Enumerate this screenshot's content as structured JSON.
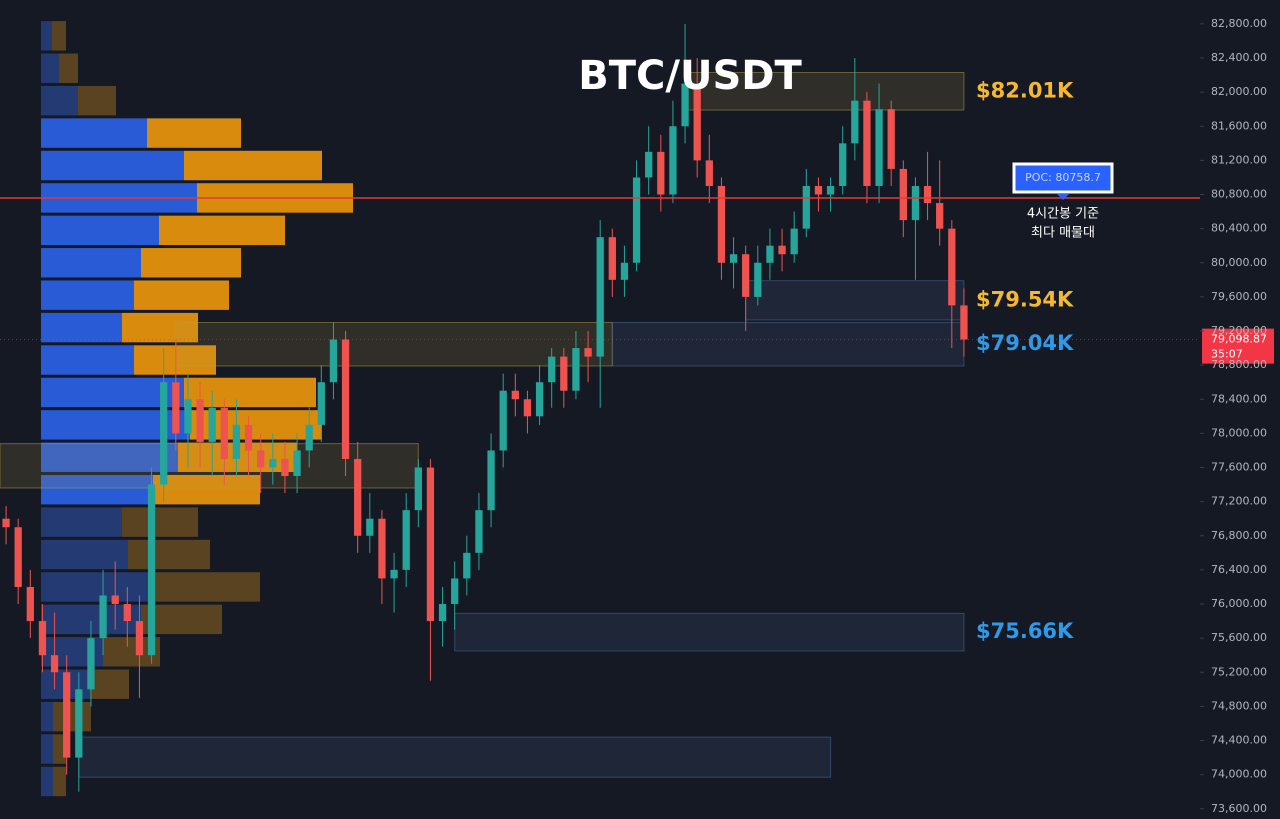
{
  "chart_data": {
    "type": "candlestick",
    "title": "BTC/USDT",
    "ylim": [
      73480,
      83080
    ],
    "yticks": [
      {
        "value": 73600,
        "label": "73,600.00"
      },
      {
        "value": 74000,
        "label": "74,000.00"
      },
      {
        "value": 74400,
        "label": "74,400.00"
      },
      {
        "value": 74800,
        "label": "74,800.00"
      },
      {
        "value": 75200,
        "label": "75,200.00"
      },
      {
        "value": 75600,
        "label": "75,600.00"
      },
      {
        "value": 76000,
        "label": "76,000.00"
      },
      {
        "value": 76400,
        "label": "76,400.00"
      },
      {
        "value": 76800,
        "label": "76,800.00"
      },
      {
        "value": 77200,
        "label": "77,200.00"
      },
      {
        "value": 77600,
        "label": "77,600.00"
      },
      {
        "value": 78000,
        "label": "78,000.00"
      },
      {
        "value": 78400,
        "label": "78,400.00"
      },
      {
        "value": 78800,
        "label": "78,800.00"
      },
      {
        "value": 79200,
        "label": "79,200.00"
      },
      {
        "value": 79600,
        "label": "79,600.00"
      },
      {
        "value": 80000,
        "label": "80,000.00"
      },
      {
        "value": 80400,
        "label": "80,400.00"
      },
      {
        "value": 80800,
        "label": "80,800.00"
      },
      {
        "value": 81200,
        "label": "81,200.00"
      },
      {
        "value": 81600,
        "label": "81,600.00"
      },
      {
        "value": 82000,
        "label": "82,000.00"
      },
      {
        "value": 82400,
        "label": "82,400.00"
      },
      {
        "value": 82800,
        "label": "82,800.00"
      }
    ],
    "grid": false,
    "colors": {
      "up": "#26a69a",
      "down": "#ef5350",
      "buy": "#2a5bd7",
      "sell": "#d98b0e",
      "buy_dim": "#233a72",
      "sell_dim": "#5a4321",
      "poc": "#e53935",
      "last": "#f23645"
    },
    "ohlc": [
      [
        77000,
        77150,
        76700,
        76900
      ],
      [
        76900,
        77000,
        76000,
        76200
      ],
      [
        76200,
        76400,
        75600,
        75800
      ],
      [
        75800,
        76000,
        75200,
        75400
      ],
      [
        75400,
        75900,
        75000,
        75200
      ],
      [
        75200,
        75400,
        74000,
        74200
      ],
      [
        74200,
        75200,
        73800,
        75000
      ],
      [
        75000,
        75800,
        74800,
        75600
      ],
      [
        75600,
        76400,
        75400,
        76100
      ],
      [
        76100,
        76500,
        75700,
        76000
      ],
      [
        76000,
        76200,
        75500,
        75800
      ],
      [
        75800,
        76100,
        74900,
        75400
      ],
      [
        75400,
        77600,
        75300,
        77400
      ],
      [
        77400,
        79000,
        77200,
        78600
      ],
      [
        78600,
        79100,
        77800,
        78000
      ],
      [
        78000,
        78700,
        77600,
        78400
      ],
      [
        78400,
        78600,
        77600,
        77900
      ],
      [
        77900,
        78500,
        77500,
        78300
      ],
      [
        78300,
        78400,
        77400,
        77700
      ],
      [
        77700,
        78400,
        77500,
        78100
      ],
      [
        78100,
        78200,
        77500,
        77800
      ],
      [
        77800,
        78000,
        77300,
        77600
      ],
      [
        77600,
        78000,
        77400,
        77700
      ],
      [
        77700,
        77900,
        77300,
        77500
      ],
      [
        77500,
        78000,
        77300,
        77800
      ],
      [
        77800,
        78300,
        77600,
        78100
      ],
      [
        78100,
        78800,
        77900,
        78600
      ],
      [
        78600,
        79300,
        78400,
        79100
      ],
      [
        79100,
        79200,
        77500,
        77700
      ],
      [
        77700,
        77900,
        76600,
        76800
      ],
      [
        76800,
        77300,
        76600,
        77000
      ],
      [
        77000,
        77100,
        76000,
        76300
      ],
      [
        76300,
        76600,
        75900,
        76400
      ],
      [
        76400,
        77300,
        76200,
        77100
      ],
      [
        77100,
        77700,
        76900,
        77600
      ],
      [
        77600,
        77700,
        75100,
        75800
      ],
      [
        75800,
        76200,
        75500,
        76000
      ],
      [
        76000,
        76500,
        75700,
        76300
      ],
      [
        76300,
        76800,
        76100,
        76600
      ],
      [
        76600,
        77300,
        76400,
        77100
      ],
      [
        77100,
        78000,
        76900,
        77800
      ],
      [
        77800,
        78700,
        77600,
        78500
      ],
      [
        78500,
        78700,
        78200,
        78400
      ],
      [
        78400,
        78500,
        78000,
        78200
      ],
      [
        78200,
        78800,
        78100,
        78600
      ],
      [
        78600,
        79000,
        78300,
        78900
      ],
      [
        78900,
        79000,
        78300,
        78500
      ],
      [
        78500,
        79200,
        78400,
        79000
      ],
      [
        79000,
        79200,
        78600,
        78900
      ],
      [
        78900,
        80500,
        78300,
        80300
      ],
      [
        80300,
        80400,
        79600,
        79800
      ],
      [
        79800,
        80200,
        79600,
        80000
      ],
      [
        80000,
        81200,
        79900,
        81000
      ],
      [
        81000,
        81600,
        80800,
        81300
      ],
      [
        81300,
        81500,
        80600,
        80800
      ],
      [
        80800,
        81900,
        80700,
        81600
      ],
      [
        81600,
        82800,
        81400,
        82100
      ],
      [
        82100,
        82400,
        81000,
        81200
      ],
      [
        81200,
        81500,
        80700,
        80900
      ],
      [
        80900,
        81000,
        79800,
        80000
      ],
      [
        80000,
        80300,
        79700,
        80100
      ],
      [
        80100,
        80200,
        79200,
        79600
      ],
      [
        79600,
        80200,
        79500,
        80000
      ],
      [
        80000,
        80400,
        79800,
        80200
      ],
      [
        80200,
        80400,
        79900,
        80100
      ],
      [
        80100,
        80600,
        80000,
        80400
      ],
      [
        80400,
        81100,
        80300,
        80900
      ],
      [
        80900,
        81000,
        80600,
        80800
      ],
      [
        80800,
        81000,
        80600,
        80900
      ],
      [
        80900,
        81600,
        80800,
        81400
      ],
      [
        81400,
        82400,
        81200,
        81900
      ],
      [
        81900,
        82000,
        80700,
        80900
      ],
      [
        80900,
        82100,
        80700,
        81800
      ],
      [
        81800,
        81900,
        80900,
        81100
      ],
      [
        81100,
        81200,
        80300,
        80500
      ],
      [
        80500,
        81000,
        79800,
        80900
      ],
      [
        80900,
        81300,
        80500,
        80700
      ],
      [
        80700,
        81200,
        80200,
        80400
      ],
      [
        80400,
        80500,
        79000,
        79500
      ],
      [
        79500,
        79700,
        78900,
        79100
      ]
    ],
    "volume_profile": {
      "bins": [
        73730,
        74110,
        74490,
        74870,
        75250,
        75630,
        76010,
        76390,
        76770,
        77150,
        77530,
        77910,
        78290,
        78670,
        79050,
        79430,
        79810,
        80190,
        80570,
        80950,
        81330,
        81710,
        82090,
        82470,
        82850
      ],
      "buy": [
        12,
        12,
        12,
        49,
        62,
        100,
        112,
        87,
        81,
        112,
        137,
        149,
        143,
        93,
        81,
        93,
        100,
        118,
        156,
        143,
        106,
        37,
        18,
        11
      ],
      "sell": [
        13,
        13,
        38,
        39,
        57,
        81,
        107,
        82,
        76,
        107,
        119,
        132,
        132,
        82,
        76,
        95,
        100,
        126,
        156,
        138,
        94,
        38,
        19,
        14
      ],
      "value_area": [
        77150,
        81710
      ]
    },
    "zones": [
      {
        "lo": 81790,
        "hi": 82230,
        "from": 56,
        "to": 79,
        "color": "#b8a040",
        "label": "$82.01K",
        "label_color": "#f5b82e"
      },
      {
        "lo": 79330,
        "hi": 79790,
        "from": 61,
        "to": 79,
        "color": "#5070a0",
        "label": "$79.54K",
        "label_color": "#f5b82e"
      },
      {
        "lo": 78790,
        "hi": 79300,
        "from": 14,
        "to": 50,
        "color": "#b8a040"
      },
      {
        "lo": 78790,
        "hi": 79300,
        "from": 50,
        "to": 79,
        "color": "#5070a0",
        "label": "$79.04K",
        "label_color": "#2f9be8"
      },
      {
        "lo": 77360,
        "hi": 77880,
        "from": 0,
        "to": 34,
        "color": "#b8a040"
      },
      {
        "lo": 75450,
        "hi": 75890,
        "from": 37,
        "to": 79,
        "color": "#5070a0",
        "label": "$75.66K",
        "label_color": "#2f9be8"
      },
      {
        "lo": 73970,
        "hi": 74440,
        "from": 6,
        "to": 68,
        "color": "#5070a0"
      }
    ],
    "poc": 80758.7,
    "poc_label": "POC: 80758.7",
    "poc_notes": [
      "4시간봉 기준",
      "최다 매물대"
    ],
    "last_price": {
      "value": 79098.87,
      "label": "79,098.87"
    },
    "countdown": "35:07"
  }
}
